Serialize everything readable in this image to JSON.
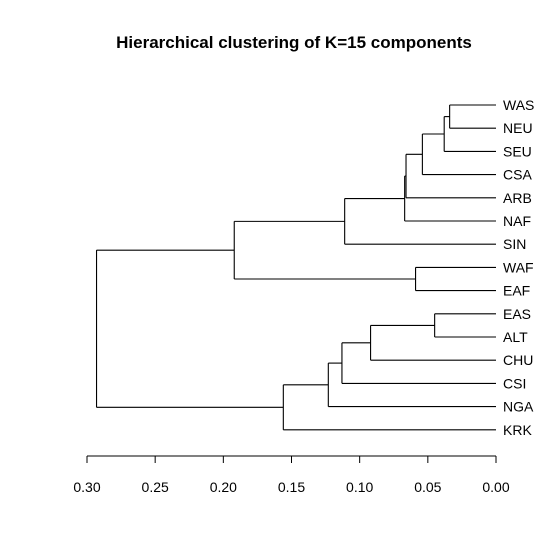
{
  "chart_data": {
    "type": "dendrogram",
    "title": "Hierarchical clustering of K=15 components",
    "orientation": "horizontal",
    "axis": {
      "reversed": true,
      "range": [
        0.3,
        0.0
      ],
      "ticks": [
        0.3,
        0.25,
        0.2,
        0.15,
        0.1,
        0.05,
        0.0
      ],
      "tick_labels": [
        "0.30",
        "0.25",
        "0.20",
        "0.15",
        "0.10",
        "0.05",
        "0.00"
      ]
    },
    "leaves": [
      "WAS",
      "NEU",
      "SEU",
      "CSA",
      "ARB",
      "NAF",
      "SIN",
      "WAF",
      "EAF",
      "EAS",
      "ALT",
      "CHU",
      "CSI",
      "NGA",
      "KRK"
    ],
    "merges": [
      {
        "id": "m1",
        "children": [
          "WAS",
          "NEU"
        ],
        "height": 0.034
      },
      {
        "id": "m2",
        "children": [
          "m1",
          "SEU"
        ],
        "height": 0.038
      },
      {
        "id": "m3",
        "children": [
          "m2",
          "CSA"
        ],
        "height": 0.054
      },
      {
        "id": "m4",
        "children": [
          "m3",
          "ARB"
        ],
        "height": 0.066
      },
      {
        "id": "m5",
        "children": [
          "m4",
          "NAF"
        ],
        "height": 0.067
      },
      {
        "id": "m6",
        "children": [
          "m5",
          "SIN"
        ],
        "height": 0.111
      },
      {
        "id": "m7",
        "children": [
          "WAF",
          "EAF"
        ],
        "height": 0.059
      },
      {
        "id": "m8",
        "children": [
          "m6",
          "m7"
        ],
        "height": 0.192
      },
      {
        "id": "m9",
        "children": [
          "EAS",
          "ALT"
        ],
        "height": 0.045
      },
      {
        "id": "m10",
        "children": [
          "m9",
          "CHU"
        ],
        "height": 0.092
      },
      {
        "id": "m11",
        "children": [
          "m10",
          "CSI"
        ],
        "height": 0.113
      },
      {
        "id": "m12",
        "children": [
          "m11",
          "NGA"
        ],
        "height": 0.123
      },
      {
        "id": "m13",
        "children": [
          "m12",
          "KRK"
        ],
        "height": 0.156
      },
      {
        "id": "m14",
        "children": [
          "m8",
          "m13"
        ],
        "height": 0.293
      }
    ]
  }
}
